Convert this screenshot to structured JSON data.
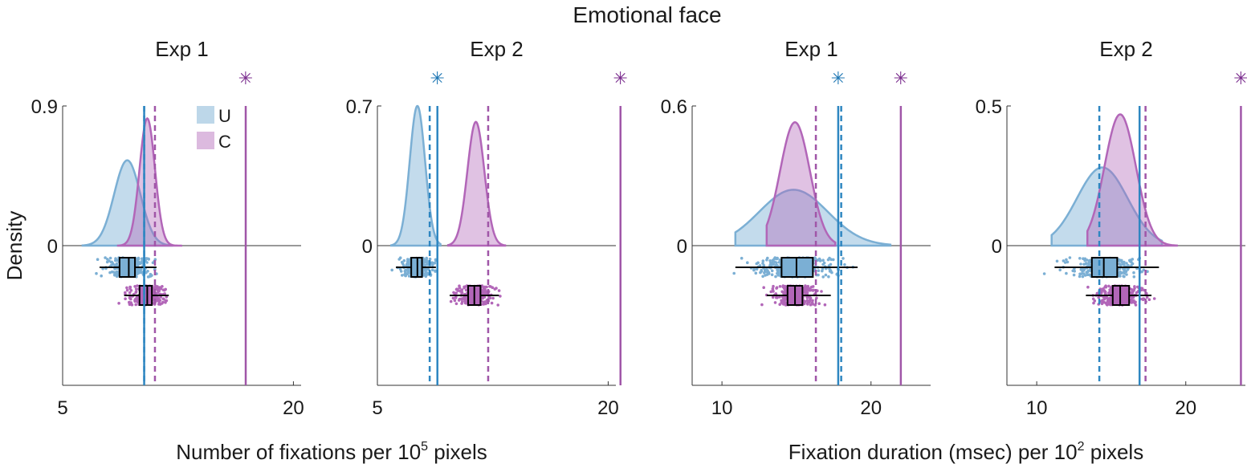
{
  "figure": {
    "title": "Emotional face",
    "ylabel": "Density",
    "xlabel_left": "Number of fixations per 10",
    "xlabel_left_sup": "5",
    "xlabel_left_tail": " pixels",
    "xlabel_right": "Fixation duration (msec) per 10",
    "xlabel_right_sup": "2",
    "xlabel_right_tail": " pixels"
  },
  "legend": [
    {
      "label": "U",
      "color": "#7bafd4"
    },
    {
      "label": "C",
      "color": "#b266b8"
    }
  ],
  "colors": {
    "U": "#7bafd4",
    "U_line": "#2e86c1",
    "C": "#b266b8",
    "C_line": "#a056a8",
    "star_U": "#1f77b4",
    "star_C": "#7b2d8e"
  },
  "chart_data": [
    {
      "type": "area",
      "title": "Exp 1",
      "xlim": [
        5,
        20.5
      ],
      "xticks": [
        5,
        20
      ],
      "ylim_top": 0.9,
      "yticks": [
        0.9,
        0
      ],
      "series": [
        {
          "name": "U",
          "peak_x": 9.2,
          "sd": 0.85,
          "peak_density": 0.55,
          "box": {
            "min": 7.4,
            "q1": 8.7,
            "median": 9.3,
            "q3": 9.7,
            "max": 11.1
          },
          "range": [
            6.3,
            12.1
          ],
          "mean_line": 10.3,
          "null_line": 10.3
        },
        {
          "name": "C",
          "peak_x": 10.5,
          "sd": 0.5,
          "peak_density": 0.82,
          "box": {
            "min": 9.0,
            "q1": 10.0,
            "median": 10.5,
            "q3": 10.8,
            "max": 11.9
          },
          "range": [
            8.6,
            12.7
          ],
          "mean_line": 11.0,
          "null_line": 16.9
        }
      ],
      "stars": [
        "C"
      ]
    },
    {
      "type": "area",
      "title": "Exp 2",
      "xlim": [
        5,
        20.5
      ],
      "xticks": [
        5,
        20
      ],
      "ylim_top": 0.7,
      "yticks": [
        0.7,
        0
      ],
      "series": [
        {
          "name": "U",
          "peak_x": 7.6,
          "sd": 0.5,
          "peak_density": 0.7,
          "box": {
            "min": 6.2,
            "q1": 7.2,
            "median": 7.6,
            "q3": 7.9,
            "max": 8.8
          },
          "range": [
            5.9,
            9.1
          ],
          "mean_line": 8.4,
          "null_line": 8.9
        },
        {
          "name": "C",
          "peak_x": 11.4,
          "sd": 0.55,
          "peak_density": 0.62,
          "box": {
            "min": 9.7,
            "q1": 10.9,
            "median": 11.3,
            "q3": 11.7,
            "max": 12.9
          },
          "range": [
            9.6,
            13.3
          ],
          "mean_line": 12.2,
          "null_line": 20.8
        }
      ],
      "stars": [
        "U",
        "C"
      ]
    },
    {
      "type": "area",
      "title": "Exp 1",
      "xlim": [
        8,
        24
      ],
      "xticks": [
        10,
        20
      ],
      "ylim_top": 0.6,
      "yticks": [
        0.6,
        0
      ],
      "series": [
        {
          "name": "U",
          "peak_x": 14.8,
          "sd": 2.3,
          "peak_density": 0.24,
          "box": {
            "min": 10.9,
            "q1": 14.0,
            "median": 15.0,
            "q3": 16.1,
            "max": 19.1
          },
          "range": [
            10.9,
            21.3
          ],
          "mean_line": 18.0,
          "null_line": 17.8
        },
        {
          "name": "C",
          "peak_x": 14.9,
          "sd": 1.0,
          "peak_density": 0.53,
          "box": {
            "min": 13.0,
            "q1": 14.4,
            "median": 14.9,
            "q3": 15.4,
            "max": 17.3
          },
          "range": [
            13.0,
            17.6
          ],
          "mean_line": 16.3,
          "null_line": 22.0
        }
      ],
      "stars": [
        "U",
        "C"
      ]
    },
    {
      "type": "area",
      "title": "Exp 2",
      "xlim": [
        8,
        24
      ],
      "xticks": [
        10,
        20
      ],
      "ylim_top": 0.5,
      "yticks": [
        0.5,
        0
      ],
      "series": [
        {
          "name": "U",
          "peak_x": 14.4,
          "sd": 1.7,
          "peak_density": 0.28,
          "box": {
            "min": 11.2,
            "q1": 13.7,
            "median": 14.5,
            "q3": 15.4,
            "max": 18.2
          },
          "range": [
            11.0,
            18.4
          ],
          "mean_line": 14.2,
          "null_line": 16.9
        },
        {
          "name": "C",
          "peak_x": 15.6,
          "sd": 1.05,
          "peak_density": 0.47,
          "box": {
            "min": 13.3,
            "q1": 15.1,
            "median": 15.6,
            "q3": 16.2,
            "max": 17.7
          },
          "range": [
            13.4,
            19.4
          ],
          "mean_line": 17.3,
          "null_line": 23.7
        }
      ],
      "stars": [
        "C"
      ]
    }
  ]
}
